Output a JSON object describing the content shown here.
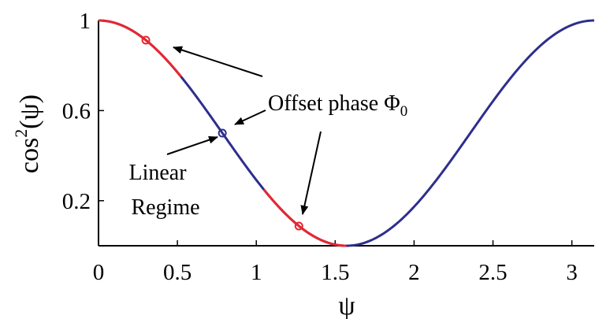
{
  "chart_data": {
    "type": "line",
    "function": "cos^2(psi)",
    "xlim": [
      0,
      3.14159
    ],
    "ylim": [
      0,
      1
    ],
    "xlabel": "ψ",
    "ylabel_base": "cos",
    "ylabel_sup": "2",
    "ylabel_arg": "(ψ)",
    "x_ticks": [
      0,
      0.5,
      1,
      1.5,
      2,
      2.5,
      3
    ],
    "x_tick_labels": [
      "0",
      "0.5",
      "1",
      "1.5",
      "2",
      "2.5",
      "3"
    ],
    "y_ticks": [
      0.2,
      0.6,
      1
    ],
    "y_tick_labels": [
      "0.2",
      "0.6",
      "1"
    ],
    "series": [
      {
        "color": "#2e2e8e",
        "x_range": [
          0,
          3.14159
        ],
        "role": "base"
      },
      {
        "color": "#e8262e",
        "x_range": [
          0,
          0.5236
        ],
        "role": "linear-regime-highlight"
      },
      {
        "color": "#e8262e",
        "x_range": [
          1.0472,
          1.5708
        ],
        "role": "linear-regime-highlight"
      }
    ],
    "markers": [
      {
        "x": 0.3,
        "y": 0.9127,
        "color": "#e8262e"
      },
      {
        "x": 0.785,
        "y": 0.5,
        "color": "#2e2e8e"
      },
      {
        "x": 1.27,
        "y": 0.0873,
        "color": "#e8262e"
      }
    ],
    "annotations": {
      "offset_phase": {
        "text": "Offset phase Φ",
        "subscript": "0"
      },
      "linear_line1": "Linear",
      "linear_line2": "Regime"
    }
  }
}
